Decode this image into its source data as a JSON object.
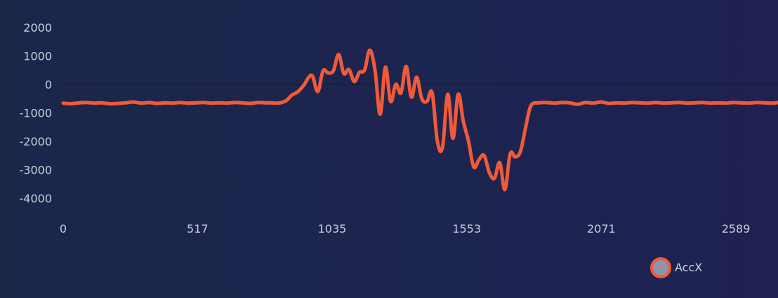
{
  "chart_data": {
    "type": "line",
    "title": "",
    "xlabel": "",
    "ylabel": "",
    "xlim": [
      0,
      2751
    ],
    "ylim": [
      -4500,
      2000
    ],
    "x_ticks": [
      0,
      517,
      1035,
      1553,
      2071,
      2589
    ],
    "y_ticks": [
      2000,
      1000,
      0,
      -1000,
      -2000,
      -3000,
      -4000
    ],
    "grid": "zero line only",
    "legend_position": "bottom-right",
    "series": [
      {
        "name": "AccX",
        "color": "#f05a38",
        "marker_fill": "#8f94a6",
        "x": [
          0,
          30,
          60,
          90,
          120,
          150,
          180,
          210,
          240,
          270,
          300,
          330,
          360,
          390,
          420,
          450,
          480,
          510,
          540,
          570,
          600,
          630,
          660,
          690,
          720,
          750,
          780,
          800,
          820,
          840,
          860,
          880,
          900,
          915,
          930,
          945,
          960,
          980,
          1000,
          1020,
          1040,
          1060,
          1080,
          1100,
          1120,
          1140,
          1160,
          1180,
          1200,
          1220,
          1240,
          1260,
          1280,
          1300,
          1320,
          1340,
          1360,
          1380,
          1400,
          1420,
          1440,
          1460,
          1480,
          1500,
          1520,
          1540,
          1560,
          1580,
          1600,
          1620,
          1640,
          1660,
          1680,
          1700,
          1720,
          1740,
          1760,
          1780,
          1800,
          1830,
          1860,
          1890,
          1920,
          1950,
          1980,
          2010,
          2040,
          2070,
          2100,
          2130,
          2160,
          2190,
          2220,
          2250,
          2280,
          2310,
          2340,
          2370,
          2400,
          2430,
          2460,
          2490,
          2520,
          2550,
          2580,
          2610,
          2640,
          2670,
          2700,
          2730,
          2751
        ],
        "values": [
          -660,
          -680,
          -650,
          -640,
          -660,
          -650,
          -680,
          -670,
          -650,
          -620,
          -660,
          -640,
          -670,
          -650,
          -660,
          -640,
          -660,
          -650,
          -640,
          -660,
          -650,
          -660,
          -640,
          -650,
          -670,
          -640,
          -650,
          -650,
          -660,
          -640,
          -560,
          -380,
          -280,
          -150,
          20,
          250,
          280,
          -250,
          470,
          400,
          480,
          1050,
          380,
          520,
          100,
          420,
          500,
          1200,
          500,
          -1050,
          600,
          -600,
          0,
          -300,
          630,
          -450,
          250,
          -500,
          -600,
          -300,
          -2000,
          -2200,
          -350,
          -1900,
          -350,
          -1300,
          -2000,
          -2900,
          -2650,
          -2500,
          -3100,
          -3300,
          -2750,
          -3700,
          -2450,
          -2550,
          -2350,
          -1500,
          -750,
          -650,
          -640,
          -660,
          -640,
          -650,
          -700,
          -640,
          -660,
          -620,
          -670,
          -650,
          -660,
          -640,
          -650,
          -660,
          -640,
          -660,
          -650,
          -640,
          -660,
          -650,
          -640,
          -660,
          -650,
          -660,
          -640,
          -650,
          -660,
          -640,
          -650,
          -660,
          -640
        ]
      }
    ]
  }
}
